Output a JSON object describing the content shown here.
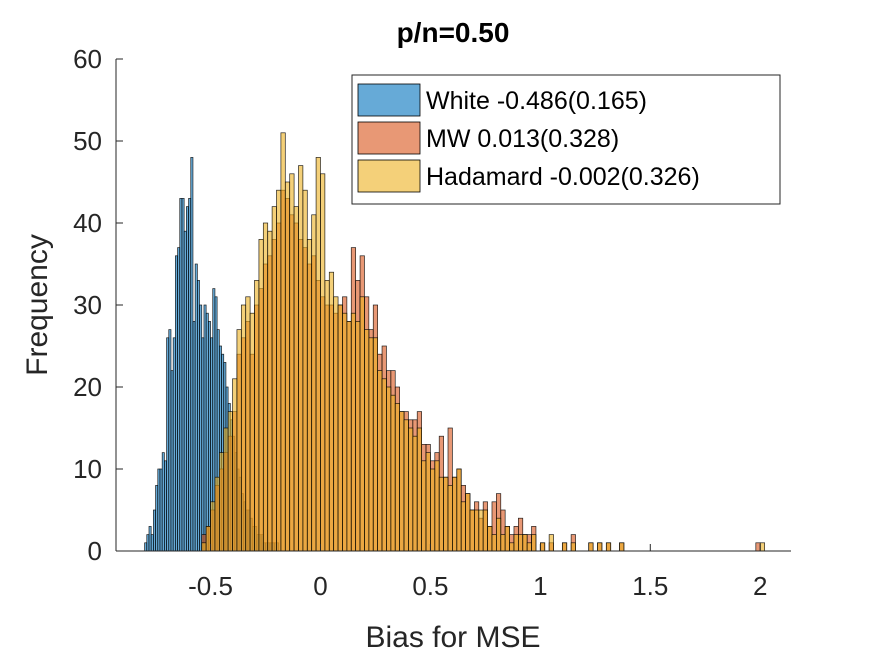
{
  "chart_data": {
    "type": "bar",
    "title": "p/n=0.50",
    "xlabel": "Bias for MSE",
    "ylabel": "Frequency",
    "xlim": [
      -0.93,
      2.14
    ],
    "ylim": [
      0,
      60
    ],
    "xticks": [
      -0.5,
      0,
      0.5,
      1,
      1.5,
      2
    ],
    "xtick_labels": [
      "-0.5",
      "0",
      "0.5",
      "1",
      "1.5",
      "2"
    ],
    "yticks": [
      0,
      10,
      20,
      30,
      40,
      50,
      60
    ],
    "ytick_labels": [
      "0",
      "10",
      "20",
      "30",
      "40",
      "50",
      "60"
    ],
    "grid": false,
    "legend_position": "top-right",
    "series": [
      {
        "name": "White -0.486(0.165)",
        "color": "#0072BD",
        "bin_width": 0.01,
        "x": [
          -0.8,
          -0.79,
          -0.78,
          -0.77,
          -0.76,
          -0.75,
          -0.74,
          -0.73,
          -0.72,
          -0.71,
          -0.7,
          -0.69,
          -0.68,
          -0.67,
          -0.66,
          -0.65,
          -0.64,
          -0.63,
          -0.62,
          -0.61,
          -0.6,
          -0.59,
          -0.58,
          -0.57,
          -0.56,
          -0.55,
          -0.54,
          -0.53,
          -0.52,
          -0.51,
          -0.5,
          -0.49,
          -0.48,
          -0.47,
          -0.46,
          -0.45,
          -0.44,
          -0.43,
          -0.42,
          -0.41,
          -0.4,
          -0.39,
          -0.38,
          -0.37,
          -0.36,
          -0.35,
          -0.34,
          -0.33,
          -0.32,
          -0.31,
          -0.3,
          -0.29,
          -0.28,
          -0.27,
          -0.26,
          -0.25,
          -0.24,
          -0.23,
          -0.22,
          -0.21,
          -0.2
        ],
        "values": [
          1,
          2,
          3,
          2,
          5,
          8,
          10,
          10,
          12,
          11,
          26,
          27,
          22,
          26,
          36,
          37,
          43,
          43,
          39,
          42,
          43,
          48,
          28,
          35,
          33,
          30,
          26,
          30,
          29,
          28,
          26,
          32,
          31,
          27,
          25,
          24,
          23,
          20,
          18,
          16,
          14,
          12,
          10,
          9,
          7,
          6,
          5,
          5,
          4,
          3,
          3,
          2,
          2,
          2,
          1,
          1,
          1,
          1,
          1,
          1,
          1
        ]
      },
      {
        "name": "MW 0.013(0.328)",
        "color": "#D95319",
        "bin_width": 0.02,
        "x": [
          -0.54,
          -0.52,
          -0.5,
          -0.48,
          -0.46,
          -0.44,
          -0.42,
          -0.4,
          -0.38,
          -0.36,
          -0.34,
          -0.32,
          -0.3,
          -0.28,
          -0.26,
          -0.24,
          -0.22,
          -0.2,
          -0.18,
          -0.16,
          -0.14,
          -0.12,
          -0.1,
          -0.08,
          -0.06,
          -0.04,
          -0.02,
          0.0,
          0.02,
          0.04,
          0.06,
          0.08,
          0.1,
          0.12,
          0.14,
          0.16,
          0.18,
          0.2,
          0.22,
          0.24,
          0.26,
          0.28,
          0.3,
          0.32,
          0.34,
          0.36,
          0.38,
          0.4,
          0.42,
          0.44,
          0.46,
          0.48,
          0.5,
          0.52,
          0.54,
          0.56,
          0.58,
          0.6,
          0.62,
          0.64,
          0.66,
          0.68,
          0.7,
          0.72,
          0.74,
          0.76,
          0.78,
          0.8,
          0.82,
          0.84,
          0.86,
          0.88,
          0.9,
          0.92,
          0.94,
          0.96,
          1.0,
          1.04,
          1.1,
          1.14,
          1.22,
          1.26,
          1.3,
          1.36,
          1.98
        ],
        "values": [
          2,
          3,
          5,
          8,
          10,
          12,
          14,
          17,
          24,
          26,
          28,
          24,
          30,
          32,
          35,
          36,
          38,
          40,
          44,
          43,
          41,
          40,
          38,
          37,
          35,
          36,
          33,
          31,
          30,
          30,
          29,
          30,
          31,
          28,
          37,
          33,
          36,
          31,
          27,
          30,
          24,
          25,
          22,
          22,
          20,
          17,
          17,
          16,
          16,
          17,
          13,
          13,
          11,
          12,
          14,
          9,
          15,
          9,
          10,
          8,
          7,
          5,
          6,
          4,
          6,
          3,
          6,
          7,
          5,
          3,
          2,
          3,
          4,
          2,
          2,
          3,
          1,
          1,
          1,
          2,
          1,
          1,
          1,
          1,
          1
        ]
      },
      {
        "name": "Hadamard -0.002(0.326)",
        "color": "#EDB120",
        "bin_width": 0.02,
        "x": [
          -0.54,
          -0.52,
          -0.5,
          -0.48,
          -0.46,
          -0.44,
          -0.42,
          -0.4,
          -0.38,
          -0.36,
          -0.34,
          -0.32,
          -0.3,
          -0.28,
          -0.26,
          -0.24,
          -0.22,
          -0.2,
          -0.18,
          -0.16,
          -0.14,
          -0.12,
          -0.1,
          -0.08,
          -0.06,
          -0.04,
          -0.02,
          0.0,
          0.02,
          0.04,
          0.06,
          0.08,
          0.1,
          0.12,
          0.14,
          0.16,
          0.18,
          0.2,
          0.22,
          0.24,
          0.26,
          0.28,
          0.3,
          0.32,
          0.34,
          0.36,
          0.38,
          0.4,
          0.42,
          0.44,
          0.46,
          0.48,
          0.5,
          0.52,
          0.54,
          0.56,
          0.58,
          0.6,
          0.62,
          0.64,
          0.66,
          0.68,
          0.7,
          0.72,
          0.74,
          0.76,
          0.78,
          0.8,
          0.82,
          0.84,
          0.86,
          0.88,
          0.9,
          0.92,
          0.94,
          0.96,
          1.0,
          1.04,
          1.1,
          1.14,
          1.22,
          1.26,
          1.3,
          1.36,
          2.0
        ],
        "values": [
          1,
          3,
          6,
          9,
          12,
          15,
          17,
          21,
          27,
          30,
          31,
          29,
          33,
          38,
          40,
          39,
          42,
          44,
          51,
          45,
          46,
          42,
          47,
          44,
          38,
          41,
          48,
          46,
          33,
          34,
          31,
          30,
          29,
          28,
          29,
          28,
          31,
          27,
          26,
          26,
          22,
          21,
          20,
          19,
          18,
          17,
          16,
          15,
          14,
          15,
          11,
          12,
          10,
          11,
          9,
          9,
          8,
          9,
          10,
          6,
          7,
          5,
          5,
          5,
          5,
          3,
          2,
          4,
          2,
          3,
          1,
          2,
          2,
          2,
          1,
          2,
          1,
          2,
          1,
          1,
          1,
          1,
          1,
          1,
          1
        ]
      }
    ]
  }
}
